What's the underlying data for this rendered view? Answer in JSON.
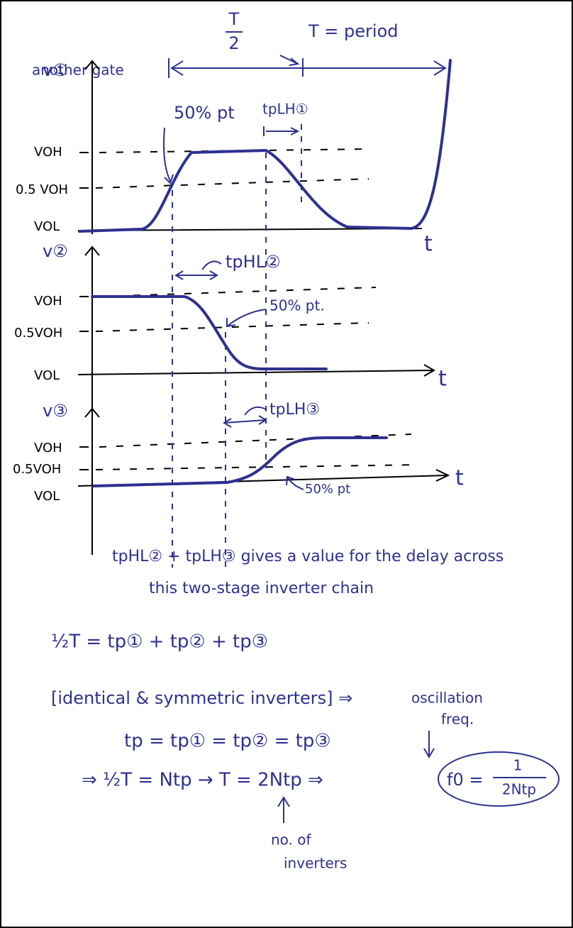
{
  "header": {
    "half_period": {
      "numerator": "T",
      "denominator": "2"
    },
    "period": "T = period",
    "label": "another gate"
  },
  "plots": [
    {
      "ylabel": "v①",
      "levels": [
        "VOH",
        "0.5 VOH",
        "VOL"
      ],
      "xlabel": "t",
      "annotations": [
        "50% pt",
        "tpLH①"
      ]
    },
    {
      "ylabel": "v②",
      "levels": [
        "VOH",
        "0.5VOH",
        "VOL"
      ],
      "xlabel": "t",
      "annotations": [
        "tpHL②",
        "50% pt."
      ]
    },
    {
      "ylabel": "v③",
      "levels": [
        "VOH",
        "0.5VOH",
        "VOL"
      ],
      "xlabel": "t",
      "annotations": [
        "tpLH③",
        "50% pt"
      ]
    }
  ],
  "notes": [
    "tpHL② + tpLH③ gives a value for the delay across",
    "this two-stage inverter chain"
  ],
  "equations": {
    "half_period_sum": "½T = tp① + tp② + tp③",
    "assumption": "[identical & symmetric inverters] ⇒",
    "equal_delays": "tp = tp① = tp② = tp③",
    "derivation": "⇒ ½T = Ntp → T = 2Ntp ⇒",
    "result": {
      "lhs": "f0 =",
      "numerator": "1",
      "denominator": "2Ntp"
    },
    "result_label": [
      "oscillation",
      "freq."
    ],
    "n_label": [
      "no. of",
      "inverters"
    ]
  }
}
